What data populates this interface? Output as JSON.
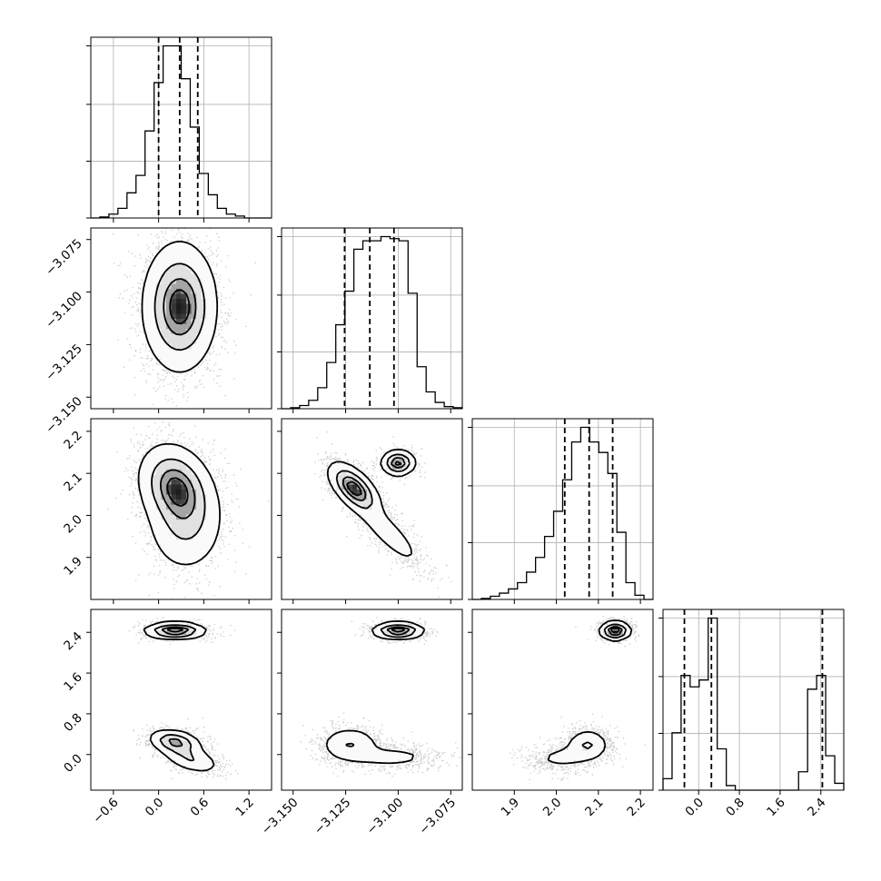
{
  "chart_data": {
    "type": "corner",
    "parameters": [
      {
        "range": [
          -0.9,
          1.5
        ],
        "ticks": [
          -0.6,
          0.0,
          0.6,
          1.2
        ],
        "tick_labels": [
          "−0.6",
          "0.0",
          "0.6",
          "1.2"
        ],
        "histogram": {
          "bin_edges": [
            -0.9,
            -0.78,
            -0.66,
            -0.54,
            -0.42,
            -0.3,
            -0.18,
            -0.06,
            0.06,
            0.18,
            0.3,
            0.42,
            0.54,
            0.66,
            0.78,
            0.9,
            1.02,
            1.14,
            1.26,
            1.38,
            1.5
          ],
          "counts": [
            0,
            0.5,
            2,
            5,
            13,
            22,
            45,
            70,
            89,
            89,
            72,
            47,
            23,
            12,
            5,
            2,
            1,
            0,
            0,
            0
          ]
        },
        "quantiles": [
          0.0,
          0.28,
          0.52
        ]
      },
      {
        "range": [
          -3.1555,
          -3.0695
        ],
        "ticks": [
          -3.15,
          -3.125,
          -3.1,
          -3.075
        ],
        "tick_labels": [
          "−3.150",
          "−3.125",
          "−3.100",
          "−3.075"
        ],
        "histogram": {
          "bin_edges": [
            -3.1555,
            -3.1512,
            -3.1469,
            -3.1426,
            -3.1383,
            -3.134,
            -3.1297,
            -3.1254,
            -3.1211,
            -3.1168,
            -3.1125,
            -3.1082,
            -3.1039,
            -3.0996,
            -3.0953,
            -3.091,
            -3.0867,
            -3.0824,
            -3.0781,
            -3.0738,
            -3.0695
          ],
          "counts": [
            0,
            0.5,
            1.5,
            4,
            10,
            22,
            40,
            56,
            76,
            80,
            80,
            82,
            81,
            80,
            55,
            20,
            8,
            3,
            1,
            0.5
          ]
        },
        "quantiles": [
          -3.1255,
          -3.1135,
          -3.102
        ]
      },
      {
        "range": [
          1.8,
          2.23
        ],
        "ticks": [
          1.9,
          2.0,
          2.1,
          2.2
        ],
        "tick_labels": [
          "1.9",
          "2.0",
          "2.1",
          "2.2"
        ],
        "histogram": {
          "bin_edges": [
            1.8,
            1.8215,
            1.843,
            1.8645,
            1.886,
            1.9075,
            1.929,
            1.9505,
            1.972,
            1.9935,
            2.015,
            2.0365,
            2.058,
            2.0795,
            2.101,
            2.1225,
            2.144,
            2.1655,
            2.187,
            2.2085,
            2.23
          ],
          "counts": [
            0,
            0.5,
            1.5,
            3,
            5,
            8,
            13,
            20,
            30,
            42,
            57,
            75,
            82,
            75,
            70,
            60,
            32,
            8,
            2,
            0
          ]
        },
        "quantiles": [
          2.02,
          2.078,
          2.134
        ]
      },
      {
        "range": [
          -0.7,
          2.85
        ],
        "ticks": [
          0.0,
          0.8,
          1.6,
          2.4
        ],
        "tick_labels": [
          "0.0",
          "0.8",
          "1.6",
          "2.4"
        ],
        "histogram": {
          "bin_edges": [
            -0.7,
            -0.5225,
            -0.345,
            -0.1675,
            0.01,
            0.1875,
            0.365,
            0.5425,
            0.72,
            0.8975,
            1.075,
            1.2525,
            1.43,
            1.6075,
            1.785,
            1.9625,
            2.14,
            2.3175,
            2.495,
            2.6725,
            2.85
          ],
          "counts": [
            0.5,
            2.5,
            5,
            4.5,
            4.8,
            7.5,
            1.8,
            0.2,
            0,
            0,
            0,
            0,
            0,
            0,
            0,
            0.8,
            4.4,
            5,
            1.5,
            0.3
          ]
        },
        "quantiles": [
          -0.28,
          0.25,
          2.43
        ]
      }
    ],
    "pair_densities": [
      {
        "x_param": 0,
        "y_param": 1,
        "components": [
          {
            "mean": [
              0.28,
              -3.107
            ],
            "sd": [
              0.24,
              0.015
            ],
            "weight": 1,
            "rho": 0
          }
        ]
      },
      {
        "x_param": 0,
        "y_param": 2,
        "components": [
          {
            "mean": [
              0.22,
              2.07
            ],
            "sd": [
              0.24,
              0.05
            ],
            "weight": 0.6,
            "rho": -0.2
          },
          {
            "mean": [
              0.36,
              1.98
            ],
            "sd": [
              0.26,
              0.06
            ],
            "weight": 0.4,
            "rho": 0
          }
        ]
      },
      {
        "x_param": 1,
        "y_param": 2,
        "components": [
          {
            "mean": [
              -3.121,
              2.065
            ],
            "sd": [
              0.006,
              0.03
            ],
            "weight": 0.55,
            "rho": -0.6
          },
          {
            "mean": [
              -3.1,
              2.125
            ],
            "sd": [
              0.004,
              0.015
            ],
            "weight": 0.22,
            "rho": 0
          },
          {
            "mean": [
              -3.105,
              1.96
            ],
            "sd": [
              0.01,
              0.05
            ],
            "weight": 0.23,
            "rho": -0.85
          }
        ]
      },
      {
        "x_param": 0,
        "y_param": 3,
        "components": [
          {
            "mean": [
              0.22,
              2.43
            ],
            "sd": [
              0.2,
              0.08
            ],
            "weight": 0.4,
            "rho": 0
          },
          {
            "mean": [
              0.22,
              0.25
            ],
            "sd": [
              0.17,
              0.12
            ],
            "weight": 0.35,
            "rho": -0.3
          },
          {
            "mean": [
              0.42,
              -0.08
            ],
            "sd": [
              0.2,
              0.15
            ],
            "weight": 0.25,
            "rho": -0.5
          }
        ]
      },
      {
        "x_param": 1,
        "y_param": 3,
        "components": [
          {
            "mean": [
              -3.1,
              2.43
            ],
            "sd": [
              0.006,
              0.08
            ],
            "weight": 0.4,
            "rho": 0
          },
          {
            "mean": [
              -3.123,
              0.2
            ],
            "sd": [
              0.007,
              0.17
            ],
            "weight": 0.38,
            "rho": 0
          },
          {
            "mean": [
              -3.104,
              -0.05
            ],
            "sd": [
              0.012,
              0.12
            ],
            "weight": 0.22,
            "rho": 0
          }
        ]
      },
      {
        "x_param": 2,
        "y_param": 3,
        "components": [
          {
            "mean": [
              2.14,
              2.43
            ],
            "sd": [
              0.018,
              0.09
            ],
            "weight": 0.4,
            "rho": 0
          },
          {
            "mean": [
              2.075,
              0.2
            ],
            "sd": [
              0.025,
              0.15
            ],
            "weight": 0.35,
            "rho": 0
          },
          {
            "mean": [
              2.02,
              -0.05
            ],
            "sd": [
              0.045,
              0.14
            ],
            "weight": 0.25,
            "rho": 0.2
          }
        ]
      }
    ],
    "contour_levels": [
      0.118,
      0.393,
      0.675,
      0.865
    ],
    "colors": {
      "line": "#000000",
      "grid": "#b0b0b0",
      "scatter": "#555555",
      "fill": "#ffffff"
    }
  }
}
